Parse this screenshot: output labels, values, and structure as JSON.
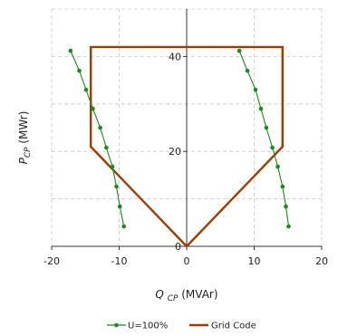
{
  "chart_data": {
    "type": "line",
    "xlim": [
      -20,
      20
    ],
    "ylim": [
      0,
      50
    ],
    "xticks": [
      -20,
      -10,
      0,
      10,
      20
    ],
    "yticks": [
      0,
      20,
      40
    ],
    "grid": true,
    "legend_position": "bottom",
    "xlabel": {
      "main": "Q",
      "sub": "CP",
      "unit": "(MVAr)"
    },
    "ylabel": {
      "main": "P",
      "sub": "CP",
      "unit": "(MWr)"
    },
    "series": [
      {
        "name": "U=100%",
        "color": "#1a8a1a",
        "marker": "dot",
        "segments": [
          {
            "x": [
              -17.2,
              -15.9,
              -14.9,
              -13.9,
              -12.8,
              -11.9,
              -11.0,
              -10.4,
              -9.9,
              -9.3
            ],
            "y": [
              41.2,
              37.0,
              33.0,
              29.0,
              25.0,
              20.8,
              16.8,
              12.6,
              8.4,
              4.2
            ]
          },
          {
            "x": [
              7.8,
              9.0,
              10.2,
              11.0,
              11.8,
              12.7,
              13.5,
              14.2,
              14.7,
              15.1
            ],
            "y": [
              41.2,
              37.0,
              33.0,
              29.0,
              25.0,
              20.8,
              16.8,
              12.6,
              8.4,
              4.2
            ]
          }
        ]
      },
      {
        "name": "Grid Code",
        "color": "#a33b00",
        "marker": "none",
        "segments": [
          {
            "x": [
              0,
              -14.2,
              -14.2,
              14.2,
              14.2,
              0
            ],
            "y": [
              0,
              21.0,
              42.0,
              42.0,
              21.0,
              0
            ]
          }
        ]
      }
    ]
  }
}
